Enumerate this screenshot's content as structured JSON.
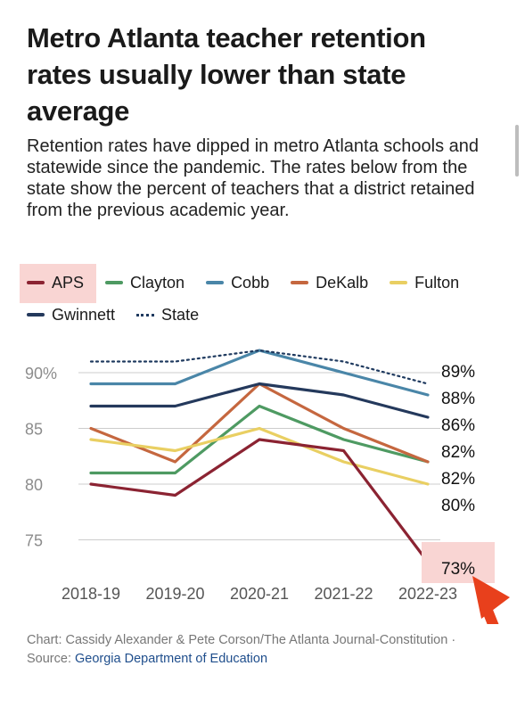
{
  "title": "Metro Atlanta teacher retention rates usually lower than state average",
  "subtitle": "Retention rates have dipped in metro Atlanta schools and statewide since the pandemic. The rates below from the state show the percent of teachers that a district retained from the previous academic year.",
  "credit": {
    "text": "Chart: Cassidy Alexander & Pete Corson/The Atlanta Journal-Constitution · Source: ",
    "source_link": "Georgia Department of Education"
  },
  "chart_data": {
    "type": "line",
    "x": [
      "2018-19",
      "2019-20",
      "2020-21",
      "2021-22",
      "2022-23"
    ],
    "ylim": [
      72,
      93
    ],
    "yticks": [
      75,
      80,
      85,
      90
    ],
    "ytick_labels": [
      "75",
      "80",
      "85",
      "90%"
    ],
    "series": [
      {
        "name": "APS",
        "color": "#8b2332",
        "dashed": false,
        "values": [
          80,
          79,
          84,
          83,
          73
        ]
      },
      {
        "name": "Clayton",
        "color": "#4e9a62",
        "dashed": false,
        "values": [
          81,
          81,
          87,
          84,
          82
        ]
      },
      {
        "name": "Cobb",
        "color": "#4a86a8",
        "dashed": false,
        "values": [
          89,
          89,
          92,
          90,
          88
        ]
      },
      {
        "name": "DeKalb",
        "color": "#c5673f",
        "dashed": false,
        "values": [
          85,
          82,
          89,
          85,
          82
        ]
      },
      {
        "name": "Fulton",
        "color": "#e9cf62",
        "dashed": false,
        "values": [
          84,
          83,
          85,
          82,
          80
        ]
      },
      {
        "name": "Gwinnett",
        "color": "#24395c",
        "dashed": false,
        "values": [
          87,
          87,
          89,
          88,
          86
        ]
      },
      {
        "name": "State",
        "color": "#1f3a5f",
        "dashed": true,
        "values": [
          91,
          91,
          92,
          91,
          89
        ]
      }
    ],
    "end_labels": [
      "89%",
      "88%",
      "86%",
      "82%",
      "82%",
      "80%",
      "73%"
    ],
    "highlight": {
      "series": "APS",
      "label": "73%",
      "color": "#f9d5d3",
      "arrow_color": "#e8401c"
    }
  }
}
